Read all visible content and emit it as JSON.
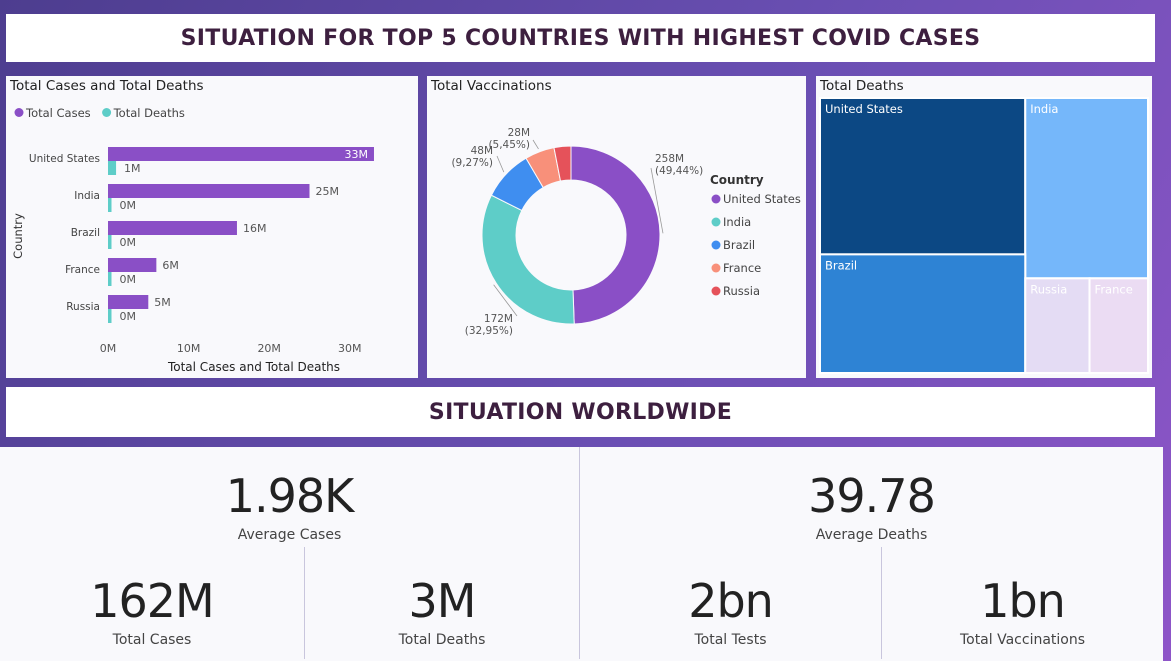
{
  "header": {
    "title": "SITUATION FOR TOP 5 COUNTRIES WITH HIGHEST COVID CASES"
  },
  "worldwide": {
    "title": "SITUATION WORLDWIDE"
  },
  "kpis": {
    "average_cases": {
      "value": "1.98K",
      "label": "Average Cases"
    },
    "average_deaths": {
      "value": "39.78",
      "label": "Average Deaths"
    },
    "total_cases": {
      "value": "162M",
      "label": "Total Cases"
    },
    "total_deaths": {
      "value": "3M",
      "label": "Total Deaths"
    },
    "total_tests": {
      "value": "2bn",
      "label": "Total Tests"
    },
    "total_vaccinations": {
      "value": "1bn",
      "label": "Total Vaccinations"
    }
  },
  "colors": {
    "cases": "#8a4fc6",
    "deaths": "#5ecdc8",
    "us": "#0c4884",
    "india": "#75b7fa",
    "brazil": "#2e83d4",
    "russia": "#e4dcf4",
    "france": "#ebdcf3"
  },
  "chart_data": [
    {
      "type": "bar",
      "orientation": "horizontal",
      "title": "Total Cases and Total Deaths",
      "xlabel": "Total Cases and Total Deaths",
      "ylabel": "Country",
      "legend_position": "top-left",
      "categories": [
        "United States",
        "India",
        "Brazil",
        "France",
        "Russia"
      ],
      "series": [
        {
          "name": "Total Cases",
          "values": [
            33,
            25,
            16,
            6,
            5
          ],
          "labels": [
            "33M",
            "25M",
            "16M",
            "6M",
            "5M"
          ]
        },
        {
          "name": "Total Deaths",
          "values": [
            1,
            0,
            0,
            0,
            0
          ],
          "labels": [
            "1M",
            "0M",
            "0M",
            "0M",
            "0M"
          ]
        }
      ],
      "xlim": [
        0,
        33
      ],
      "xticks": [
        0,
        10,
        20,
        30
      ],
      "xtick_labels": [
        "0M",
        "10M",
        "20M",
        "30M"
      ]
    },
    {
      "type": "pie",
      "style": "donut",
      "title": "Total Vaccinations",
      "legend_title": "Country",
      "legend_position": "right",
      "categories": [
        "United States",
        "India",
        "Brazil",
        "France",
        "Russia"
      ],
      "values": [
        258,
        172,
        48,
        28,
        16
      ],
      "value_labels": [
        "258M",
        "172M",
        "48M",
        "28M",
        ""
      ],
      "percent_labels": [
        "(49,44%)",
        "(32,95%)",
        "(9,27%)",
        "(5,45%)",
        ""
      ]
    },
    {
      "type": "treemap",
      "title": "Total Deaths",
      "categories": [
        "United States",
        "India",
        "Brazil",
        "Russia",
        "France"
      ],
      "values": [
        0.58,
        0.4,
        0.44,
        0.11,
        0.1
      ]
    }
  ]
}
